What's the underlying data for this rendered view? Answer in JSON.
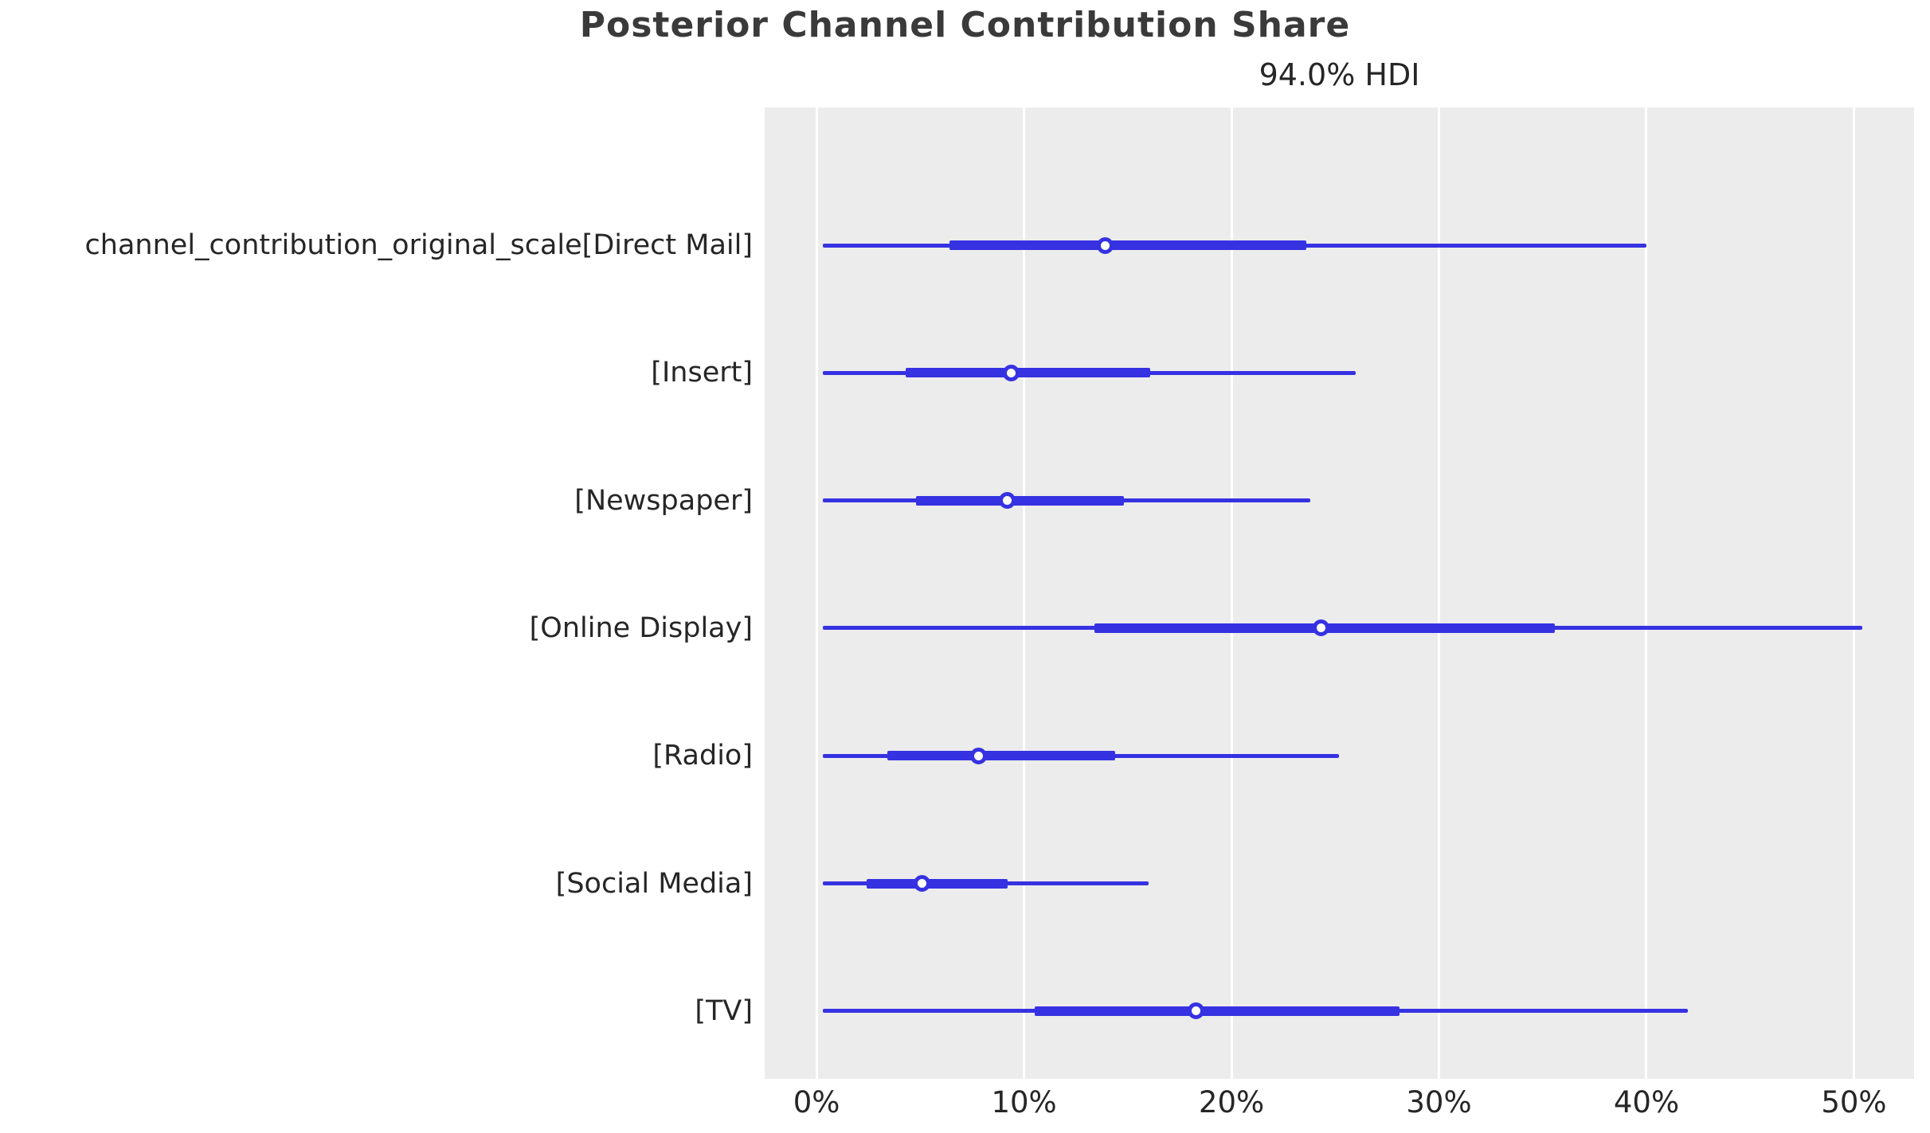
{
  "title": "Posterior Channel Contribution Share",
  "subtitle": "94.0% HDI",
  "colors": {
    "line": "#3632E2",
    "plot_bg": "#ECECEC",
    "grid": "#FFFFFF",
    "title_text": "#3A3A3A",
    "tick_text": "#262626",
    "figure_bg": "#FFFFFF"
  },
  "chart_data": {
    "type": "forest",
    "title": "Posterior Channel Contribution Share",
    "subtitle": "94.0% HDI",
    "hdi_probability": "94.0%",
    "legend": "none",
    "grid": "vertical-white-on-gray",
    "x_axis": {
      "unit": "%",
      "tick_values": [
        0,
        10,
        20,
        30,
        40,
        50
      ],
      "tick_labels": [
        "0%",
        "10%",
        "20%",
        "30%",
        "40%",
        "50%"
      ],
      "axis_min": -2.5,
      "axis_max": 52.9
    },
    "rows": [
      {
        "label": "channel_contribution_original_scale[Direct Mail]",
        "channel": "Direct Mail",
        "hdi_94_low": 0.3,
        "quartile_low": 6.4,
        "median": 13.9,
        "quartile_high": 23.6,
        "hdi_94_high": 40.0
      },
      {
        "label": "[Insert]",
        "channel": "Insert",
        "hdi_94_low": 0.3,
        "quartile_low": 4.3,
        "median": 9.4,
        "quartile_high": 16.1,
        "hdi_94_high": 26.0
      },
      {
        "label": "[Newspaper]",
        "channel": "Newspaper",
        "hdi_94_low": 0.3,
        "quartile_low": 4.8,
        "median": 9.2,
        "quartile_high": 14.8,
        "hdi_94_high": 23.8
      },
      {
        "label": "[Online Display]",
        "channel": "Online Display",
        "hdi_94_low": 0.3,
        "quartile_low": 13.4,
        "median": 24.3,
        "quartile_high": 35.6,
        "hdi_94_high": 50.4
      },
      {
        "label": "[Radio]",
        "channel": "Radio",
        "hdi_94_low": 0.3,
        "quartile_low": 3.4,
        "median": 7.8,
        "quartile_high": 14.4,
        "hdi_94_high": 25.2
      },
      {
        "label": "[Social Media]",
        "channel": "Social Media",
        "hdi_94_low": 0.3,
        "quartile_low": 2.4,
        "median": 5.1,
        "quartile_high": 9.2,
        "hdi_94_high": 16.0
      },
      {
        "label": "[TV]",
        "channel": "TV",
        "hdi_94_low": 0.3,
        "quartile_low": 10.5,
        "median": 18.3,
        "quartile_high": 28.1,
        "hdi_94_high": 42.0
      }
    ]
  }
}
